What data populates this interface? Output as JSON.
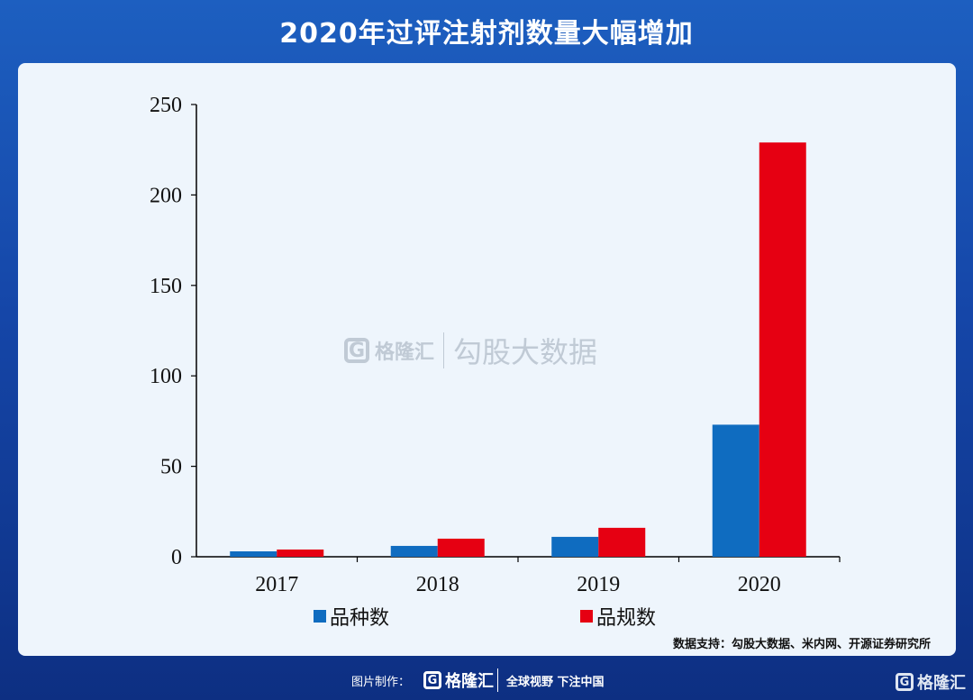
{
  "header": {
    "title": "2020年过评注射剂数量大幅增加"
  },
  "chart_data": {
    "type": "bar",
    "categories": [
      "2017",
      "2018",
      "2019",
      "2020"
    ],
    "series": [
      {
        "name": "品种数",
        "values": [
          3,
          6,
          11,
          73
        ],
        "color": "#0f6cc0"
      },
      {
        "name": "品规数",
        "values": [
          4,
          10,
          16,
          229
        ],
        "color": "#e60012"
      }
    ],
    "ylim": [
      0,
      250
    ],
    "yticks": [
      0,
      50,
      100,
      150,
      200,
      250
    ],
    "ytick_labels": [
      "0",
      "50",
      "100",
      "150",
      "200",
      "250"
    ],
    "legend_position": "bottom",
    "grid": false
  },
  "source": {
    "text": "数据支持：勾股大数据、米内网、开源证券研究所"
  },
  "watermark": {
    "logo_letter": "G",
    "brand": "格隆汇",
    "text": "勾股大数据"
  },
  "footer": {
    "credit": "图片制作：",
    "logo_letter": "G",
    "brand": "格隆汇",
    "slogan": "全球视野 下注中国"
  },
  "corner_logo": {
    "letter": "G",
    "brand": "格隆汇"
  }
}
